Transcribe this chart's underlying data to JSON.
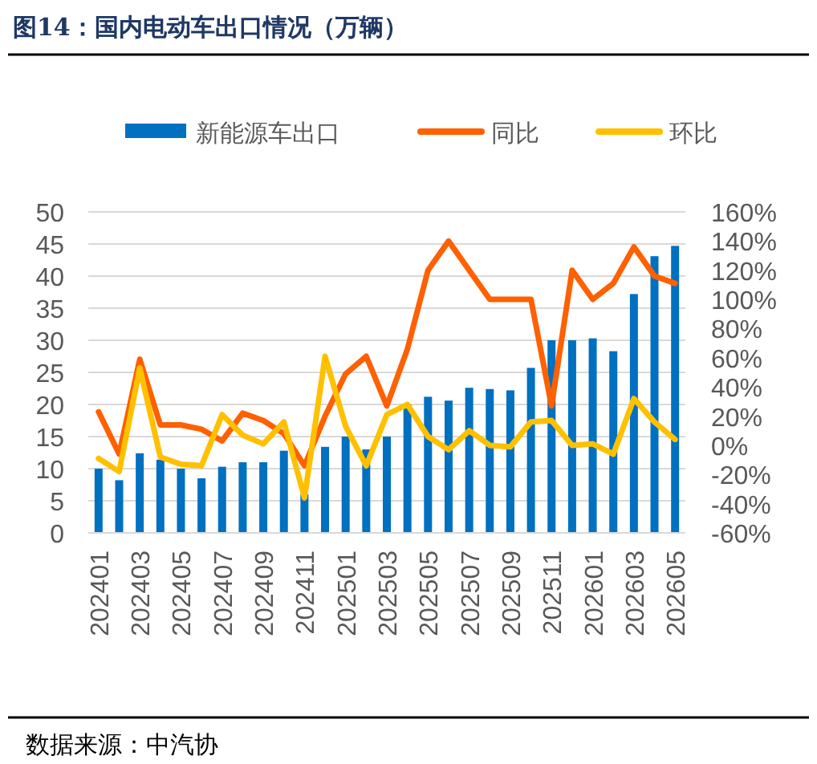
{
  "chart_data": {
    "type": "bar",
    "title": "图14：国内电动车出口情况（万辆）",
    "annotations": [
      "数据来源：中汽协"
    ],
    "categories": [
      "202401",
      null,
      "202403",
      null,
      "202405",
      null,
      "202407",
      null,
      "202409",
      null,
      "202411",
      null,
      "202501",
      null,
      "202503",
      null,
      "202505",
      null,
      "202507",
      null,
      "202509",
      null,
      "202511",
      null,
      "202601",
      null,
      "202603",
      null,
      "202605"
    ],
    "series": [
      {
        "name": "新能源车出口",
        "color": "#0070c0",
        "values": [
          10.0,
          8.2,
          12.4,
          11.4,
          10.0,
          8.5,
          10.3,
          11.0,
          11.0,
          12.8,
          6.0,
          13.4,
          15.0,
          13.0,
          15.0,
          20.0,
          21.2,
          20.6,
          22.6,
          22.4,
          22.2,
          25.7,
          30.0,
          30.0,
          30.3,
          28.3,
          37.2,
          43.1,
          44.7
        ]
      },
      {
        "name": "同比",
        "type": "line",
        "axis": "y2",
        "color": "#ff6000",
        "values": [
          23,
          -6,
          59,
          14,
          14,
          11,
          3,
          22,
          17,
          8,
          -14,
          20,
          49,
          61,
          27,
          66,
          120,
          140,
          120,
          100,
          100,
          100,
          27,
          120,
          100,
          111,
          136,
          116,
          111
        ]
      },
      {
        "name": "环比",
        "type": "line",
        "axis": "y2",
        "color": "#ffc000",
        "values": [
          -9,
          -18,
          53,
          -8,
          -13,
          -14,
          21,
          7,
          1,
          16,
          -36,
          61,
          13,
          -14,
          21,
          28,
          6,
          -3,
          10,
          0,
          -1,
          16,
          17,
          0,
          1,
          -6,
          32,
          16,
          4
        ]
      }
    ],
    "ylim": [
      0,
      50
    ],
    "yticks": [
      0,
      5,
      10,
      15,
      20,
      25,
      30,
      35,
      40,
      45,
      50
    ],
    "y2lim": [
      -60,
      160
    ],
    "y2ticks": [
      {
        "value": -60,
        "label": "-60%"
      },
      {
        "value": -40,
        "label": "-40%"
      },
      {
        "value": -20,
        "label": "-20%"
      },
      {
        "value": 0,
        "label": "0%"
      },
      {
        "value": 20,
        "label": "20%"
      },
      {
        "value": 40,
        "label": "40%"
      },
      {
        "value": 60,
        "label": "60%"
      },
      {
        "value": 80,
        "label": "80%"
      },
      {
        "value": 100,
        "label": "100%"
      },
      {
        "value": 120,
        "label": "120%"
      },
      {
        "value": 140,
        "label": "140%"
      },
      {
        "value": 160,
        "label": "160%"
      }
    ],
    "grid": "y",
    "legend": "top"
  }
}
